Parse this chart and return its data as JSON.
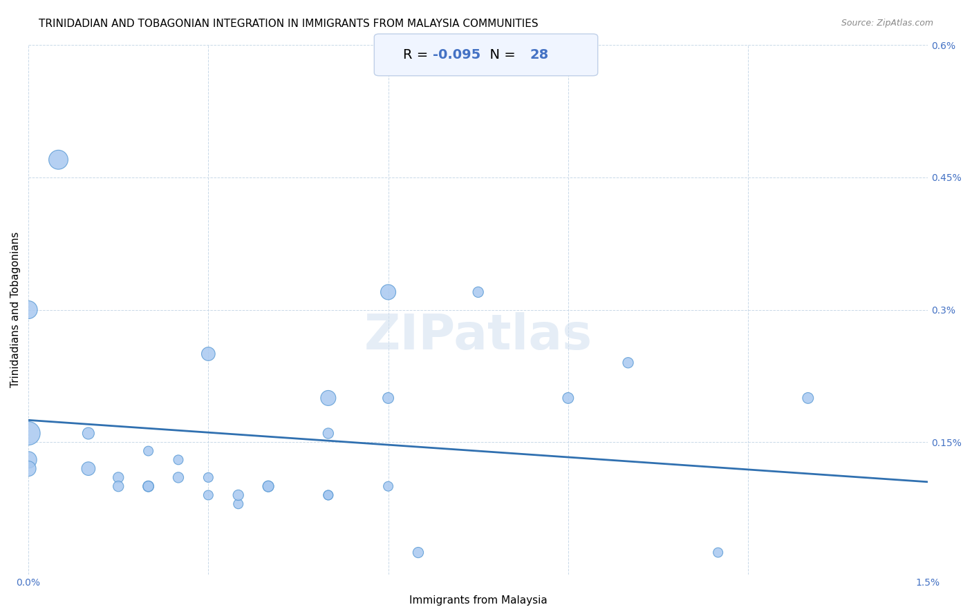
{
  "title": "TRINIDADIAN AND TOBAGONIAN INTEGRATION IN IMMIGRANTS FROM MALAYSIA COMMUNITIES",
  "source": "Source: ZipAtlas.com",
  "xlabel": "Immigrants from Malaysia",
  "ylabel": "Trinidadians and Tobagonians",
  "R": -0.095,
  "N": 28,
  "xlim": [
    0.0,
    0.015
  ],
  "ylim": [
    0.0,
    0.006
  ],
  "xticks": [
    0.0,
    0.003,
    0.006,
    0.009,
    0.012,
    0.015
  ],
  "xtick_labels": [
    "0.0%",
    "",
    "",
    "",
    "",
    "1.5%"
  ],
  "yticks": [
    0.0,
    0.0015,
    0.003,
    0.0045,
    0.006
  ],
  "ytick_labels": [
    "",
    "0.15%",
    "0.3%",
    "0.45%",
    "0.6%"
  ],
  "scatter_x": [
    0.0005,
    0.001,
    0.001,
    0.0015,
    0.0015,
    0.002,
    0.002,
    0.002,
    0.0025,
    0.0025,
    0.003,
    0.003,
    0.003,
    0.0035,
    0.0035,
    0.004,
    0.004,
    0.005,
    0.005,
    0.005,
    0.006,
    0.006,
    0.006,
    0.0075,
    0.009,
    0.01,
    0.013,
    0.0115
  ],
  "scatter_y": [
    0.0047,
    0.0016,
    0.0012,
    0.0011,
    0.001,
    0.0014,
    0.001,
    0.001,
    0.0013,
    0.0011,
    0.0025,
    0.0011,
    0.0009,
    0.0008,
    0.0009,
    0.001,
    0.001,
    0.0016,
    0.0009,
    0.0009,
    0.0032,
    0.002,
    0.001,
    0.0032,
    0.002,
    0.0024,
    0.002,
    0.00025
  ],
  "scatter_sizes": [
    400,
    150,
    200,
    120,
    120,
    100,
    130,
    120,
    100,
    120,
    200,
    100,
    100,
    100,
    120,
    130,
    130,
    120,
    100,
    100,
    250,
    130,
    100,
    120,
    130,
    120,
    130,
    100
  ],
  "scatter_x2": [
    0.0,
    0.0,
    0.0,
    0.0,
    0.005,
    0.0065
  ],
  "scatter_y2": [
    0.0016,
    0.0013,
    0.0012,
    0.003,
    0.002,
    0.00025
  ],
  "scatter_sizes2": [
    600,
    300,
    250,
    350,
    250,
    120
  ],
  "dot_color": "#a8c8f0",
  "dot_edge_color": "#5b9bd5",
  "line_color": "#3070b0",
  "trend_x": [
    0.0,
    0.015
  ],
  "trend_y": [
    0.00175,
    0.00105
  ],
  "annotation_box_color": "#f0f5ff",
  "annotation_box_edge": "#c0d0e8",
  "R_color": "#4472c4",
  "N_color": "#4472c4",
  "grid_color": "#c8d8e8",
  "watermark": "ZIPatlas",
  "background_color": "#ffffff",
  "title_fontsize": 11,
  "axis_label_fontsize": 11,
  "tick_fontsize": 10,
  "tick_color": "#4472c4"
}
